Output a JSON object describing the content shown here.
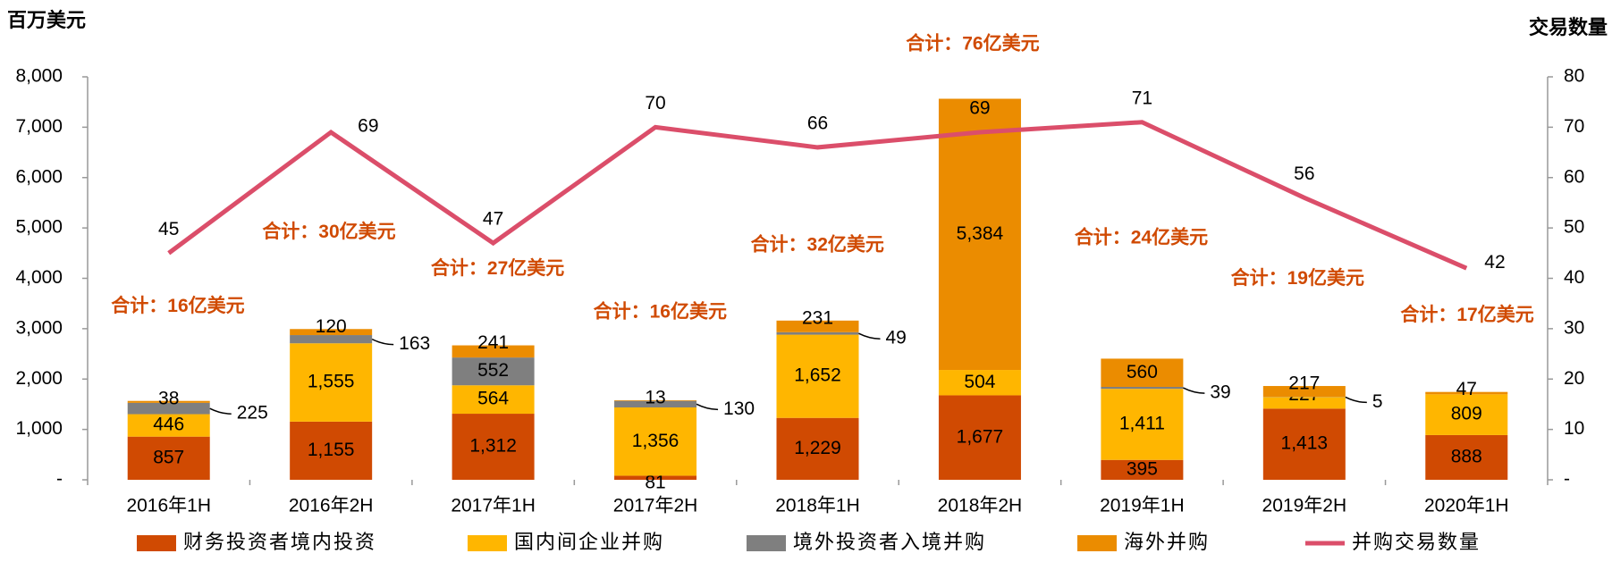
{
  "chart_data": {
    "type": "bar",
    "stacked": true,
    "y_label": "百万美元",
    "y2_label": "交易数量",
    "categories": [
      "2016年1H",
      "2016年2H",
      "2017年1H",
      "2017年2H",
      "2018年1H",
      "2018年2H",
      "2019年1H",
      "2019年2H",
      "2020年1H"
    ],
    "series": [
      {
        "name": "财务投资者境内投资",
        "color": "#d04a02",
        "values": [
          857,
          1155,
          1312,
          81,
          1229,
          1677,
          395,
          1413,
          888
        ],
        "value_labels": [
          "857",
          "1,155",
          "1,312",
          "81",
          "1,229",
          "1,677",
          "395",
          "1,413",
          "888"
        ]
      },
      {
        "name": "国内间企业并购",
        "color": "#ffb600",
        "values": [
          446,
          1555,
          564,
          1356,
          1652,
          504,
          1411,
          227,
          809
        ],
        "value_labels": [
          "446",
          "1,555",
          "564",
          "1,356",
          "1,652",
          "504",
          "1,411",
          "227",
          "809"
        ]
      },
      {
        "name": "境外投资者入境并购",
        "color": "#7f7f7f",
        "values": [
          225,
          163,
          552,
          130,
          49,
          null,
          39,
          5,
          null
        ]
      },
      {
        "name": "海外并购",
        "color": "#eb8c00",
        "values": [
          38,
          120,
          241,
          13,
          231,
          5384,
          560,
          217,
          47
        ],
        "value_labels": [
          "38",
          "120",
          "241",
          "13",
          "231",
          "5,384",
          "560",
          "217",
          "47"
        ]
      },
      {
        "name": "并购交易数量",
        "type": "line",
        "axis": "y2",
        "color": "#db4e6a",
        "values": [
          45,
          69,
          47,
          70,
          66,
          69,
          71,
          56,
          42
        ]
      }
    ],
    "annotations": [
      "合计：16亿美元",
      "合计：30亿美元",
      "合计：27亿美元",
      "合计：16亿美元",
      "合计：32亿美元",
      "合计：76亿美元",
      "合计：24亿美元",
      "合计：19亿美元",
      "合计：17亿美元"
    ],
    "ylim": [
      0,
      8000
    ],
    "yticks": [
      {
        "value": 0,
        "label": "-"
      },
      {
        "value": 1000,
        "label": "1,000"
      },
      {
        "value": 2000,
        "label": "2,000"
      },
      {
        "value": 3000,
        "label": "3,000"
      },
      {
        "value": 4000,
        "label": "4,000"
      },
      {
        "value": 5000,
        "label": "5,000"
      },
      {
        "value": 6000,
        "label": "6,000"
      },
      {
        "value": 7000,
        "label": "7,000"
      },
      {
        "value": 8000,
        "label": "8,000"
      }
    ],
    "y2lim": [
      0,
      80
    ],
    "y2ticks": [
      {
        "value": 0,
        "label": "-"
      },
      10,
      20,
      30,
      40,
      50,
      60,
      70,
      80
    ],
    "legend": "bottom"
  }
}
